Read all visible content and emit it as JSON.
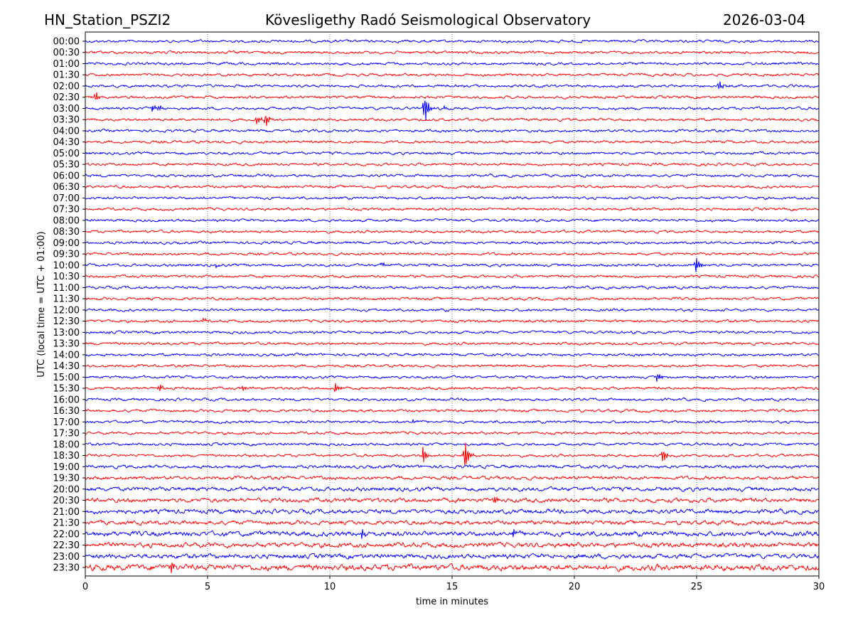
{
  "chart_data": {
    "type": "line",
    "title_left": "HN_Station_PSZI2",
    "title_center": "Kövesligethy Radó Seismological Observatory",
    "title_right": "2026-03-04",
    "xlabel": "time in minutes",
    "ylabel": "UTC (local time = UTC + 01:00)",
    "xlim": [
      0,
      30
    ],
    "xticks": [
      "0",
      "5",
      "10",
      "15",
      "20",
      "25",
      "30"
    ],
    "grid": "vertical dotted at each x tick",
    "trace_colors": [
      "#0000ff",
      "#ff0000"
    ],
    "rows": [
      "00:00",
      "00:30",
      "01:00",
      "01:30",
      "02:00",
      "02:30",
      "03:00",
      "03:30",
      "04:00",
      "04:30",
      "05:00",
      "05:30",
      "06:00",
      "06:30",
      "07:00",
      "07:30",
      "08:00",
      "08:30",
      "09:00",
      "09:30",
      "10:00",
      "10:30",
      "11:00",
      "11:30",
      "12:00",
      "12:30",
      "13:00",
      "13:30",
      "14:00",
      "14:30",
      "15:00",
      "15:30",
      "16:00",
      "16:30",
      "17:00",
      "17:30",
      "18:00",
      "18:30",
      "19:00",
      "19:30",
      "20:00",
      "20:30",
      "21:00",
      "21:30",
      "22:00",
      "22:30",
      "23:00",
      "23:30"
    ],
    "noise_level": [
      1,
      1,
      1,
      1,
      1,
      1,
      1,
      1,
      1,
      1,
      1,
      1,
      1,
      1,
      1,
      1,
      1,
      1,
      1,
      1,
      1,
      1,
      1,
      1,
      1,
      1,
      1,
      1,
      1,
      1,
      1,
      1,
      1,
      1,
      1,
      1,
      1,
      1,
      1.2,
      1.3,
      1.5,
      1.6,
      1.6,
      1.5,
      1.8,
      1.8,
      1.7,
      2.2
    ],
    "events": [
      {
        "row": "02:00",
        "minute": 25.9,
        "amp": 8
      },
      {
        "row": "02:30",
        "minute": 0.4,
        "amp": 10
      },
      {
        "row": "03:00",
        "minute": 2.7,
        "amp": 6
      },
      {
        "row": "03:00",
        "minute": 3.0,
        "amp": 5
      },
      {
        "row": "03:00",
        "minute": 13.85,
        "amp": 30
      },
      {
        "row": "03:00",
        "minute": 14.6,
        "amp": 4
      },
      {
        "row": "03:30",
        "minute": 7.0,
        "amp": 8
      },
      {
        "row": "03:30",
        "minute": 7.35,
        "amp": 12
      },
      {
        "row": "10:00",
        "minute": 5.3,
        "amp": 4
      },
      {
        "row": "10:00",
        "minute": 12.1,
        "amp": 4
      },
      {
        "row": "10:00",
        "minute": 24.95,
        "amp": 15
      },
      {
        "row": "12:30",
        "minute": 4.8,
        "amp": 4
      },
      {
        "row": "15:00",
        "minute": 23.35,
        "amp": 8
      },
      {
        "row": "15:30",
        "minute": 3.0,
        "amp": 8
      },
      {
        "row": "15:30",
        "minute": 6.4,
        "amp": 5
      },
      {
        "row": "15:30",
        "minute": 10.2,
        "amp": 9
      },
      {
        "row": "17:00",
        "minute": 13.4,
        "amp": 3
      },
      {
        "row": "18:30",
        "minute": 13.8,
        "amp": 15
      },
      {
        "row": "18:30",
        "minute": 15.5,
        "amp": 28
      },
      {
        "row": "18:30",
        "minute": 23.6,
        "amp": 12
      },
      {
        "row": "20:30",
        "minute": 16.7,
        "amp": 5
      },
      {
        "row": "22:00",
        "minute": 11.3,
        "amp": 8
      },
      {
        "row": "22:00",
        "minute": 17.5,
        "amp": 6
      },
      {
        "row": "23:30",
        "minute": 3.5,
        "amp": 12
      }
    ]
  }
}
